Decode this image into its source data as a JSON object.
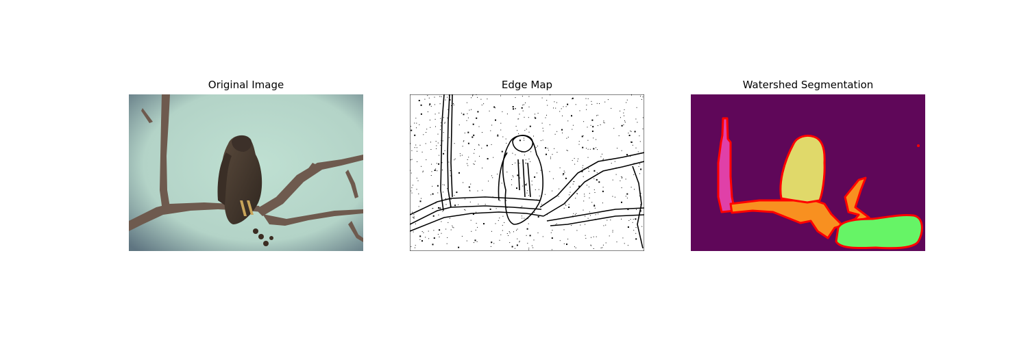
{
  "panels": [
    {
      "title": "Original Image"
    },
    {
      "title": "Edge Map"
    },
    {
      "title": "Watershed Segmentation"
    }
  ],
  "colors": {
    "sky": "#b6d6cc",
    "branch": "#6e5a4e",
    "bird": "#4a3d33",
    "edge_background": "#ffffff",
    "edge_lines": "#000000",
    "segment_background": "#5f0759",
    "segment_pink": "#e040a8",
    "segment_yellow": "#e0d96a",
    "segment_orange": "#f89020",
    "segment_green": "#66f466",
    "segment_boundary": "#ff0000"
  }
}
